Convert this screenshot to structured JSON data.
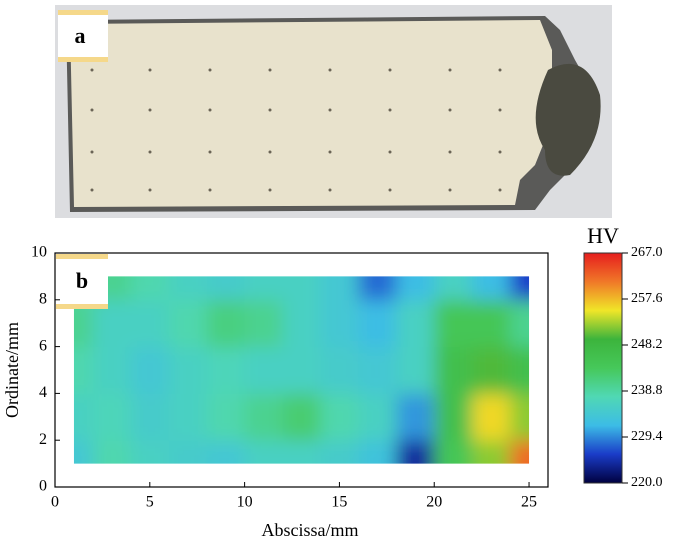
{
  "chart_data": {
    "type": "contour",
    "panel_labels": [
      "a",
      "b"
    ],
    "x": [
      1,
      3,
      5,
      7,
      9,
      11,
      13,
      15,
      17,
      19,
      21,
      23,
      25
    ],
    "y": [
      1,
      3,
      5,
      7,
      9
    ],
    "z": [
      [
        234,
        238,
        236,
        235,
        234,
        236,
        236,
        235,
        233,
        224,
        244,
        252,
        262
      ],
      [
        236,
        237,
        235,
        236,
        238,
        240,
        242,
        238,
        236,
        230,
        246,
        256,
        252
      ],
      [
        238,
        236,
        234,
        236,
        237,
        236,
        236,
        235,
        234,
        236,
        246,
        250,
        246
      ],
      [
        240,
        236,
        236,
        238,
        241,
        240,
        236,
        234,
        232,
        236,
        244,
        244,
        240
      ],
      [
        238,
        240,
        238,
        236,
        235,
        236,
        236,
        234,
        228,
        232,
        236,
        232,
        226
      ]
    ],
    "xlabel": "Abscissa/mm",
    "ylabel": "Ordinate/mm",
    "xlim": [
      0,
      26
    ],
    "ylim": [
      0,
      10
    ],
    "xticks": [
      0,
      5,
      10,
      15,
      20,
      25
    ],
    "yticks": [
      0,
      2,
      4,
      6,
      8,
      10
    ],
    "colorbar_title": "HV",
    "clim": [
      220,
      267
    ],
    "cticks": [
      {
        "value": 220,
        "label": "220.0"
      },
      {
        "value": 229.4,
        "label": "229.4"
      },
      {
        "value": 238.8,
        "label": "238.8"
      },
      {
        "value": 248.2,
        "label": "248.2"
      },
      {
        "value": 257.6,
        "label": "257.6"
      },
      {
        "value": 267,
        "label": "267.0"
      }
    ],
    "colormap": [
      "#000040",
      "#1a3cc8",
      "#3cbce6",
      "#50d8b4",
      "#46c85a",
      "#3cb43c",
      "#f0e628",
      "#f07828",
      "#e61e1e"
    ]
  }
}
